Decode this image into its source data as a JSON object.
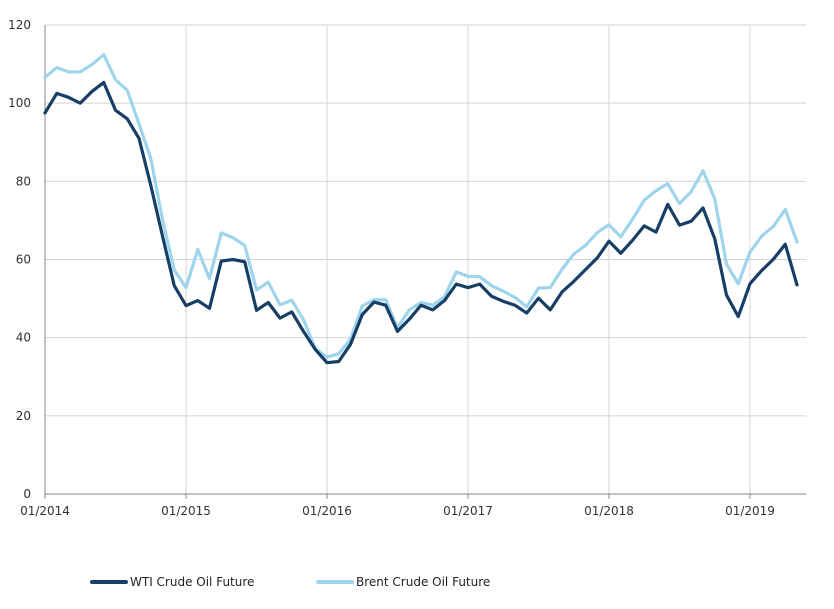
{
  "chart_data": {
    "type": "line",
    "title": "",
    "xlabel": "",
    "ylabel": "",
    "ylim": [
      0,
      120
    ],
    "xlim": [
      "2014-01",
      "2019-06"
    ],
    "y_ticks": [
      "0",
      "20",
      "40",
      "60",
      "80",
      "100",
      "120"
    ],
    "x_ticks": [
      {
        "date": "2014-01",
        "label": "01/2014"
      },
      {
        "date": "2015-01",
        "label": "01/2015"
      },
      {
        "date": "2016-01",
        "label": "01/2016"
      },
      {
        "date": "2017-01",
        "label": "01/2017"
      },
      {
        "date": "2018-01",
        "label": "01/2018"
      },
      {
        "date": "2019-01",
        "label": "01/2019"
      }
    ],
    "grid": "vertical at year ticks, horizontal at y ticks",
    "legend_position": "bottom-left",
    "x": [
      "2014-01",
      "2014-02",
      "2014-03",
      "2014-04",
      "2014-05",
      "2014-06",
      "2014-07",
      "2014-08",
      "2014-09",
      "2014-10",
      "2014-11",
      "2014-12",
      "2015-01",
      "2015-02",
      "2015-03",
      "2015-04",
      "2015-05",
      "2015-06",
      "2015-07",
      "2015-08",
      "2015-09",
      "2015-10",
      "2015-11",
      "2015-12",
      "2016-01",
      "2016-02",
      "2016-03",
      "2016-04",
      "2016-05",
      "2016-06",
      "2016-07",
      "2016-08",
      "2016-09",
      "2016-10",
      "2016-11",
      "2016-12",
      "2017-01",
      "2017-02",
      "2017-03",
      "2017-04",
      "2017-05",
      "2017-06",
      "2017-07",
      "2017-08",
      "2017-09",
      "2017-10",
      "2017-11",
      "2017-12",
      "2018-01",
      "2018-02",
      "2018-03",
      "2018-04",
      "2018-05",
      "2018-06",
      "2018-07",
      "2018-08",
      "2018-09",
      "2018-10",
      "2018-11",
      "2018-12",
      "2019-01",
      "2019-02",
      "2019-03",
      "2019-04",
      "2019-05"
    ],
    "series": [
      {
        "name": "WTI Crude Oil Future",
        "color": "#173f66",
        "values": [
          97.5,
          102.5,
          101.5,
          100,
          103,
          105.3,
          98.2,
          96,
          91,
          79,
          66,
          53.3,
          48.2,
          49.5,
          47.5,
          59.6,
          60,
          59.4,
          47,
          49,
          45,
          46.6,
          41.6,
          37,
          33.6,
          33.9,
          38.3,
          45.9,
          49.1,
          48.3,
          41.6,
          44.7,
          48.3,
          47.1,
          49.5,
          53.7,
          52.8,
          53.7,
          50.6,
          49.3,
          48.3,
          46.3,
          50.1,
          47.1,
          51.7,
          54.4,
          57.4,
          60.4,
          64.7,
          61.6,
          64.9,
          68.6,
          67,
          74.1,
          68.8,
          69.8,
          73.2,
          65.3,
          50.9,
          45.4,
          53.8,
          57.2,
          60.1,
          63.9,
          53.5
        ]
      },
      {
        "name": "Brent Crude Oil Future",
        "color": "#9fd5ec",
        "values": [
          106.6,
          109.1,
          108,
          108,
          109.9,
          112.4,
          106,
          103.3,
          94.7,
          85.9,
          70.2,
          57.3,
          52.8,
          62.6,
          55.1,
          66.8,
          65.6,
          63.6,
          52.2,
          54.2,
          48.4,
          49.6,
          44.6,
          37.3,
          35,
          35.9,
          39.6,
          48.1,
          49.7,
          49.7,
          42.5,
          47.1,
          49,
          48.3,
          50.5,
          56.8,
          55.7,
          55.6,
          53.3,
          51.9,
          50.3,
          47.9,
          52.7,
          52.8,
          57.5,
          61.4,
          63.6,
          66.9,
          68.9,
          65.8,
          70.3,
          75.2,
          77.6,
          79.4,
          74.3,
          77.4,
          82.7,
          75.5,
          58.8,
          53.8,
          61.9,
          66,
          68.5,
          72.8,
          64.5
        ]
      }
    ]
  }
}
